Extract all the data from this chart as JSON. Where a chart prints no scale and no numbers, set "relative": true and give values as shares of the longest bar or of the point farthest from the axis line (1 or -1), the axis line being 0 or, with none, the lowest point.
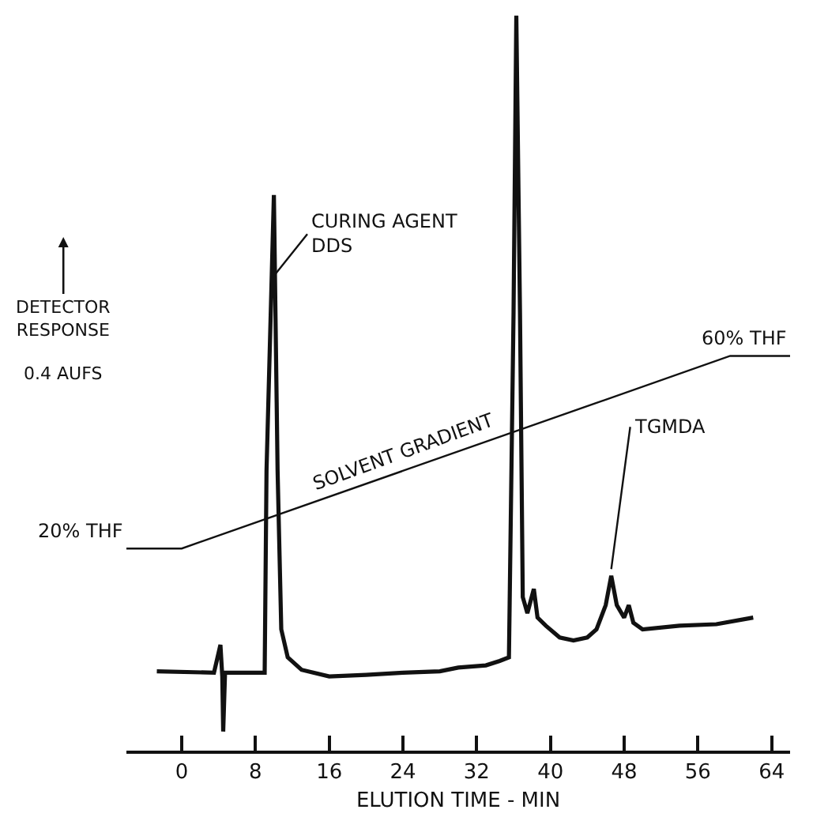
{
  "chart_data": {
    "type": "line",
    "relative": true,
    "xlabel": "ELUTION TIME - MIN",
    "ylabel": "DETECTOR\nRESPONSE",
    "xlim": [
      -6,
      66
    ],
    "xticks": [
      0,
      8,
      16,
      24,
      32,
      40,
      48,
      56,
      64
    ],
    "marker": "none",
    "line_style": "solid",
    "series": [
      {
        "color": "#111111",
        "x": [
          -2.7,
          3.5,
          4.2,
          4.4,
          4.5,
          4.7,
          5.5,
          8.5,
          9,
          9.2,
          10,
          10.4,
          10.8,
          11.5,
          13,
          16,
          20,
          24,
          28,
          30,
          33,
          34.5,
          35.5,
          36,
          36.3,
          36.7,
          37,
          37.5,
          38.2,
          38.6,
          39.5,
          41,
          42.5,
          44,
          45,
          46,
          46.6,
          47.2,
          48,
          48.5,
          49,
          50,
          54,
          58,
          62
        ],
        "values": [
          0.108,
          0.106,
          0.144,
          0.101,
          0.026,
          0.106,
          0.106,
          0.106,
          0.106,
          0.381,
          0.756,
          0.381,
          0.165,
          0.127,
          0.11,
          0.101,
          0.103,
          0.106,
          0.108,
          0.113,
          0.116,
          0.122,
          0.127,
          0.596,
          1.0,
          0.596,
          0.209,
          0.187,
          0.22,
          0.181,
          0.17,
          0.154,
          0.15,
          0.154,
          0.165,
          0.198,
          0.238,
          0.198,
          0.181,
          0.198,
          0.174,
          0.165,
          0.17,
          0.172,
          0.181
        ]
      },
      {
        "color": "#111111",
        "x": [
          -6,
          0,
          59.5,
          66
        ],
        "values": [
          0.275,
          0.275,
          0.537,
          0.537
        ]
      }
    ],
    "annotations": [
      {
        "text": "CURING AGENT\nDDS",
        "x": 10.2,
        "y": 0.649
      },
      {
        "text": "TGMDA",
        "x": 46.6,
        "y": 0.247
      },
      {
        "text": "SOLVENT GRADIENT",
        "x": 24,
        "y": 0.38
      },
      {
        "text": "20% THF",
        "x": -6,
        "y": 0.275
      },
      {
        "text": "60% THF",
        "x": 66,
        "y": 0.537
      },
      "0.4 AUFS"
    ]
  }
}
